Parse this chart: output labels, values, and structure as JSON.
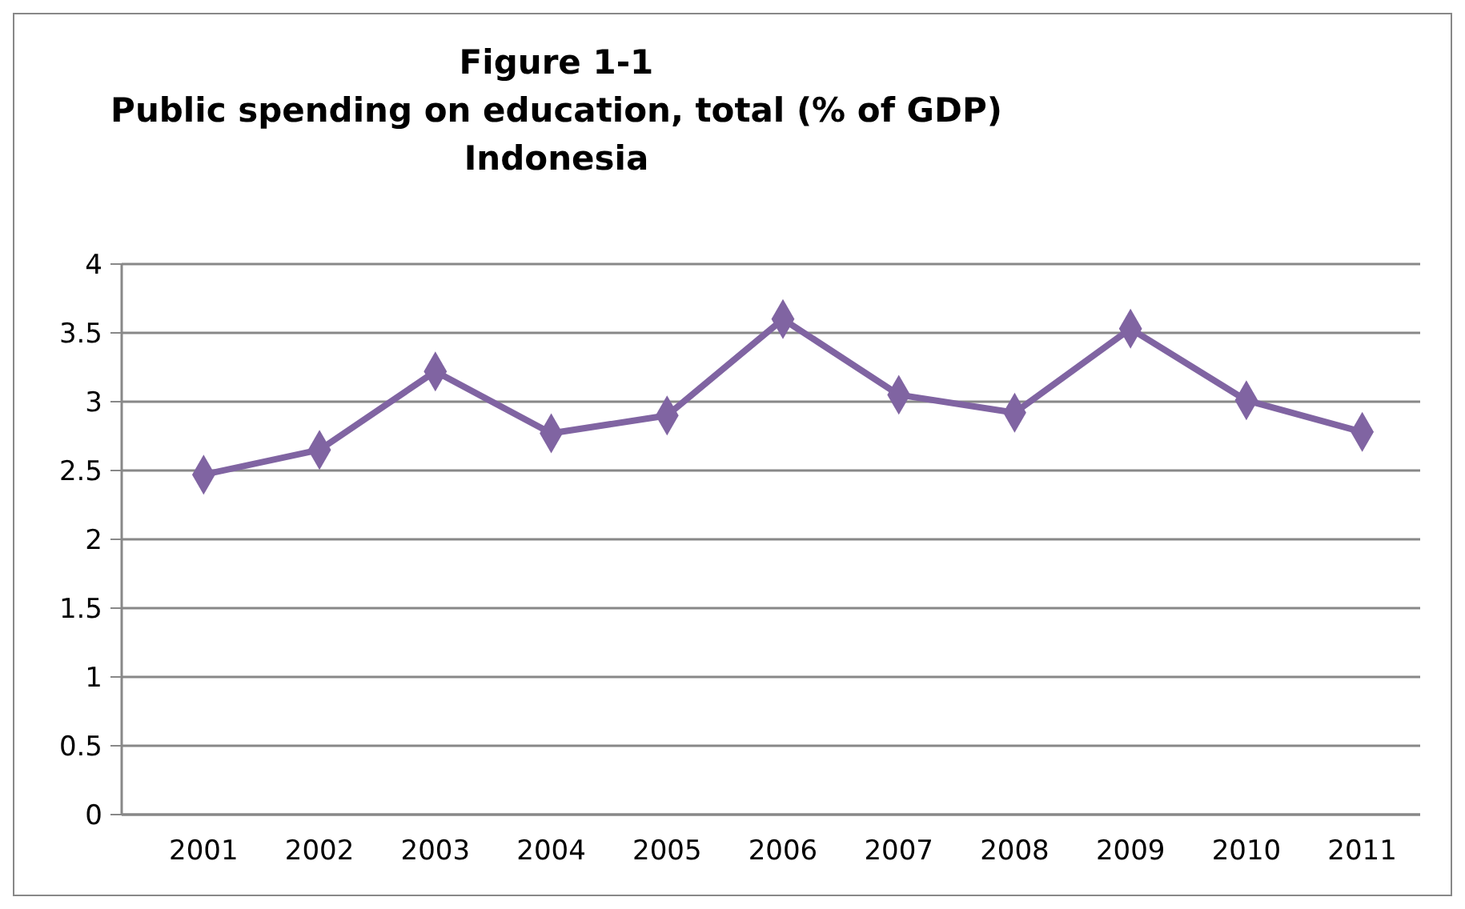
{
  "chart_data": {
    "type": "line",
    "title": "Figure 1-1\nPublic spending on education, total (% of GDP)\nIndonesia",
    "categories": [
      "2001",
      "2002",
      "2003",
      "2004",
      "2005",
      "2006",
      "2007",
      "2008",
      "2009",
      "2010",
      "2011"
    ],
    "series": [
      {
        "color": "#8064a2",
        "values": [
          2.47,
          2.65,
          3.22,
          2.77,
          2.9,
          3.6,
          3.05,
          2.92,
          3.53,
          3.01,
          2.78
        ]
      }
    ],
    "ylim": [
      0,
      4
    ],
    "yticks": [
      0,
      0.5,
      1,
      1.5,
      2,
      2.5,
      3,
      3.5,
      4
    ],
    "grid": "y",
    "marker": "diamond"
  }
}
